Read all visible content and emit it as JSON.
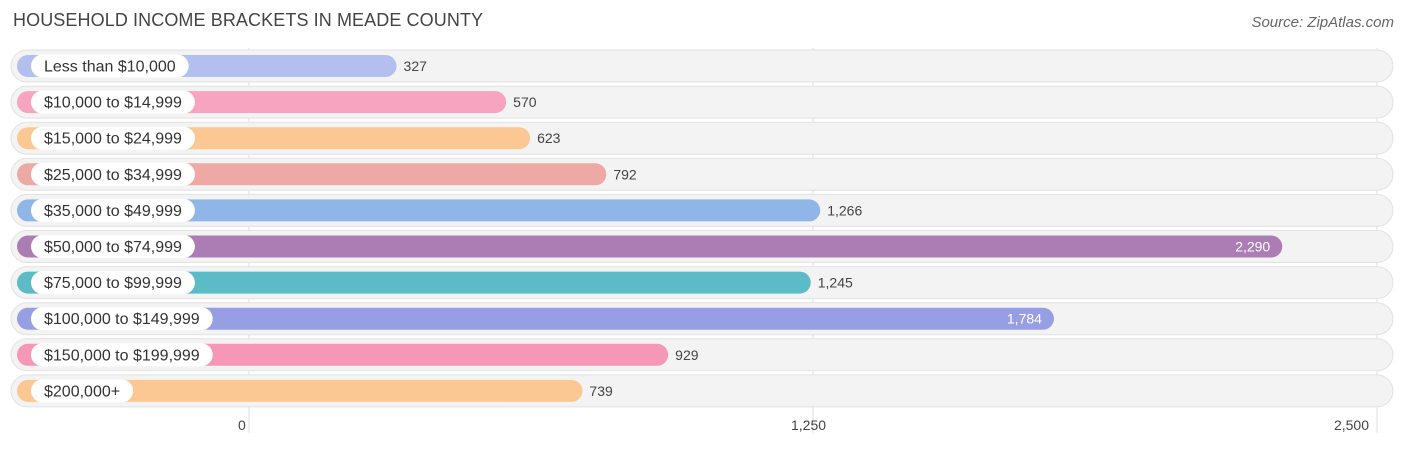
{
  "header": {
    "title": "HOUSEHOLD INCOME BRACKETS IN MEADE COUNTY",
    "source": "Source: ZipAtlas.com"
  },
  "chart_data": {
    "type": "bar",
    "orientation": "horizontal",
    "categories": [
      "Less than $10,000",
      "$10,000 to $14,999",
      "$15,000 to $24,999",
      "$25,000 to $34,999",
      "$35,000 to $49,999",
      "$50,000 to $74,999",
      "$75,000 to $99,999",
      "$100,000 to $149,999",
      "$150,000 to $199,999",
      "$200,000+"
    ],
    "values": [
      327,
      570,
      623,
      792,
      1266,
      2290,
      1245,
      1784,
      929,
      739
    ],
    "value_labels": [
      "327",
      "570",
      "623",
      "792",
      "1,266",
      "2,290",
      "1,245",
      "1,784",
      "929",
      "739"
    ],
    "colors": [
      "#b3bfee",
      "#f7a4c0",
      "#fbc894",
      "#efa9a4",
      "#8fb6e6",
      "#ac7db4",
      "#5bbcc8",
      "#979fe4",
      "#f797b8",
      "#fbc894"
    ],
    "xlim": [
      0,
      2500
    ],
    "xticks": [
      0,
      1250,
      2500
    ],
    "xtick_labels": [
      "0",
      "1,250",
      "2,500"
    ],
    "grid": true
  }
}
